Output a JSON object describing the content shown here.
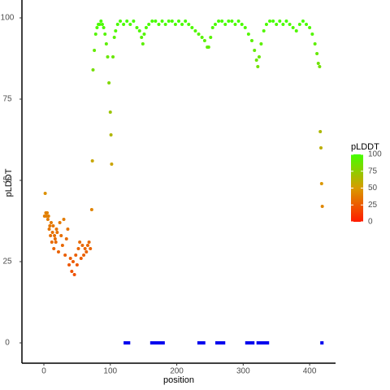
{
  "chart_data": {
    "type": "scatter",
    "xlabel": "position",
    "ylabel": "pLDDT",
    "x": [
      1,
      2,
      3,
      4,
      5,
      6,
      7,
      8,
      9,
      10,
      11,
      12,
      13,
      14,
      15,
      16,
      17,
      18,
      19,
      20,
      22,
      24,
      26,
      28,
      30,
      32,
      34,
      36,
      38,
      40,
      42,
      44,
      46,
      48,
      50,
      52,
      54,
      56,
      58,
      60,
      62,
      64,
      66,
      68,
      70,
      72,
      73,
      74,
      76,
      78,
      80,
      82,
      84,
      86,
      88,
      90,
      92,
      94,
      96,
      98,
      100,
      101,
      102,
      104,
      106,
      108,
      111,
      115,
      120,
      125,
      130,
      135,
      140,
      144,
      147,
      149,
      151,
      154,
      158,
      163,
      168,
      173,
      178,
      183,
      188,
      193,
      198,
      203,
      208,
      213,
      218,
      223,
      228,
      233,
      238,
      242,
      246,
      248,
      251,
      254,
      258,
      263,
      268,
      273,
      278,
      283,
      288,
      293,
      298,
      303,
      308,
      313,
      317,
      320,
      322,
      324,
      327,
      331,
      335,
      340,
      345,
      350,
      355,
      360,
      365,
      370,
      375,
      380,
      385,
      390,
      395,
      400,
      404,
      408,
      411,
      413,
      415,
      416,
      417,
      418,
      419
    ],
    "values": [
      39,
      46,
      40,
      39,
      40,
      38,
      39,
      35,
      36,
      33,
      37,
      31,
      34,
      36,
      29,
      33,
      32,
      31,
      35,
      34,
      28,
      37,
      33,
      30,
      38,
      27,
      32,
      35,
      24,
      26,
      22,
      25,
      21,
      27,
      24,
      29,
      31,
      26,
      30,
      27,
      29,
      28,
      30,
      31,
      29,
      41,
      56,
      84,
      90,
      95,
      97,
      98,
      98,
      99,
      98,
      97,
      95,
      92,
      88,
      80,
      71,
      64,
      55,
      88,
      94,
      96,
      98,
      99,
      98,
      99,
      98,
      99,
      97,
      96,
      94,
      92,
      95,
      97,
      98,
      99,
      99,
      98,
      99,
      98,
      99,
      99,
      98,
      99,
      98,
      99,
      98,
      97,
      96,
      95,
      94,
      93,
      91,
      91,
      94,
      97,
      98,
      99,
      99,
      98,
      99,
      99,
      98,
      99,
      98,
      97,
      95,
      93,
      90,
      87,
      85,
      88,
      92,
      96,
      98,
      99,
      99,
      98,
      99,
      98,
      99,
      98,
      97,
      96,
      98,
      99,
      98,
      97,
      95,
      92,
      89,
      86,
      85,
      65,
      60,
      49,
      42
    ],
    "xlim": [
      -33,
      439
    ],
    "ylim": [
      -6.25,
      105.5
    ],
    "xticks": [
      0,
      100,
      200,
      300,
      400
    ],
    "yticks": [
      0,
      25,
      50,
      75,
      100
    ],
    "segment_y": 0,
    "segment_color": "#0000ee",
    "segments": [
      {
        "start": 120,
        "end": 130
      },
      {
        "start": 160,
        "end": 182
      },
      {
        "start": 231,
        "end": 243
      },
      {
        "start": 258,
        "end": 273
      },
      {
        "start": 303,
        "end": 317
      },
      {
        "start": 320,
        "end": 339
      },
      {
        "start": 416,
        "end": 421
      }
    ],
    "color_scale": {
      "title": "pLDDT",
      "low": "#ff1a00",
      "mid": "#d99a00",
      "high": "#44ff00",
      "lim": [
        0,
        100
      ],
      "ticks": [
        0,
        25,
        50,
        75,
        100
      ]
    }
  }
}
